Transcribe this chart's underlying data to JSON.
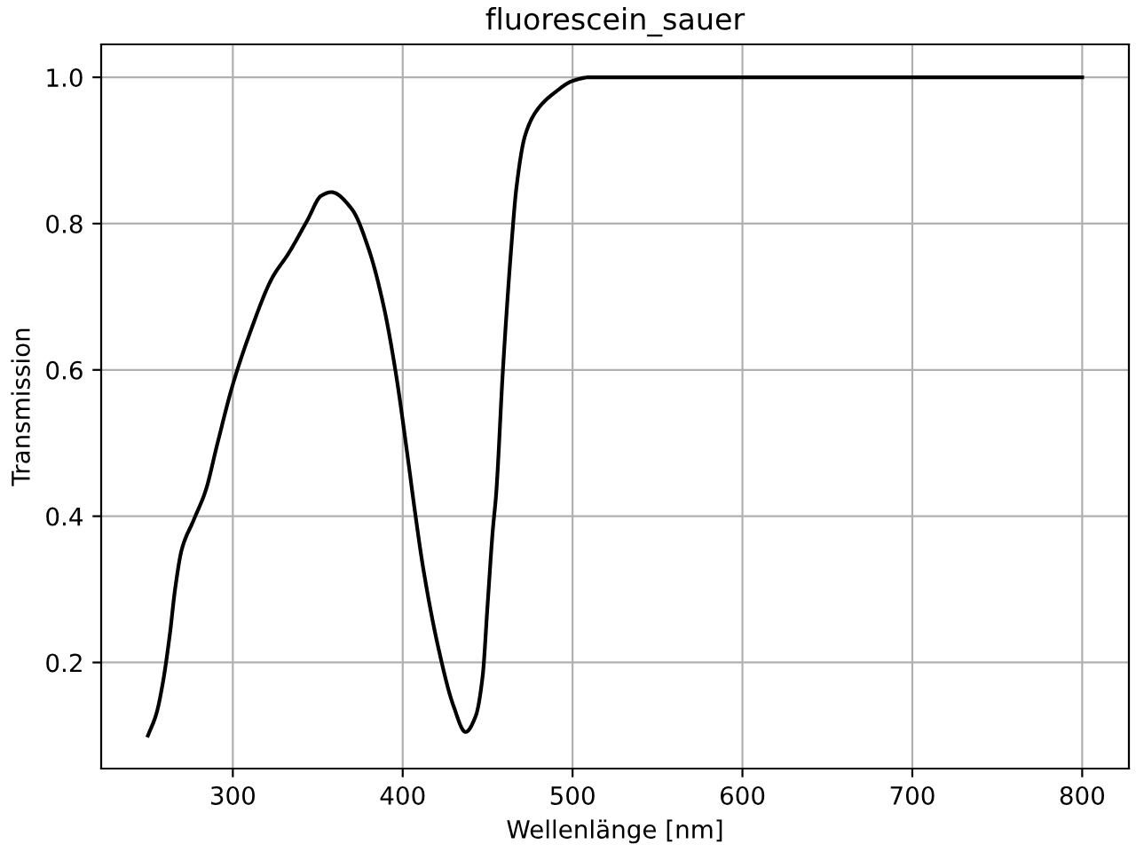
{
  "chart_data": {
    "type": "line",
    "title": "fluorescein_sauer",
    "xlabel": "Wellenlänge [nm]",
    "ylabel": "Transmission",
    "x": [
      250,
      255,
      259,
      263,
      266,
      270,
      277,
      284,
      291,
      300,
      310,
      323,
      333,
      344,
      352,
      358,
      370,
      380,
      389,
      396,
      403,
      407,
      412,
      421,
      430,
      437,
      443,
      447,
      450,
      453,
      455,
      459,
      464,
      467,
      472,
      479,
      490,
      500,
      510,
      800
    ],
    "series": [
      {
        "color": "#000000",
        "values": [
          0.1,
          0.13,
          0.175,
          0.24,
          0.3,
          0.355,
          0.395,
          0.435,
          0.5,
          0.58,
          0.65,
          0.725,
          0.76,
          0.805,
          0.838,
          0.843,
          0.82,
          0.765,
          0.685,
          0.595,
          0.48,
          0.41,
          0.33,
          0.22,
          0.14,
          0.105,
          0.127,
          0.18,
          0.28,
          0.38,
          0.43,
          0.6,
          0.77,
          0.85,
          0.92,
          0.955,
          0.98,
          0.995,
          1.0,
          1.0
        ]
      }
    ],
    "xlim": [
      222.5,
      827.5
    ],
    "ylim": [
      0.055,
      1.045
    ],
    "xticks": [
      300,
      400,
      500,
      600,
      700,
      800
    ],
    "yticks": [
      {
        "value": 0.2,
        "label": "0.2"
      },
      {
        "value": 0.4,
        "label": "0.4"
      },
      {
        "value": 0.6,
        "label": "0.6"
      },
      {
        "value": 0.8,
        "label": "0.8"
      },
      {
        "value": 1.0,
        "label": "1.0"
      }
    ],
    "grid": true,
    "line_style": "solid"
  }
}
